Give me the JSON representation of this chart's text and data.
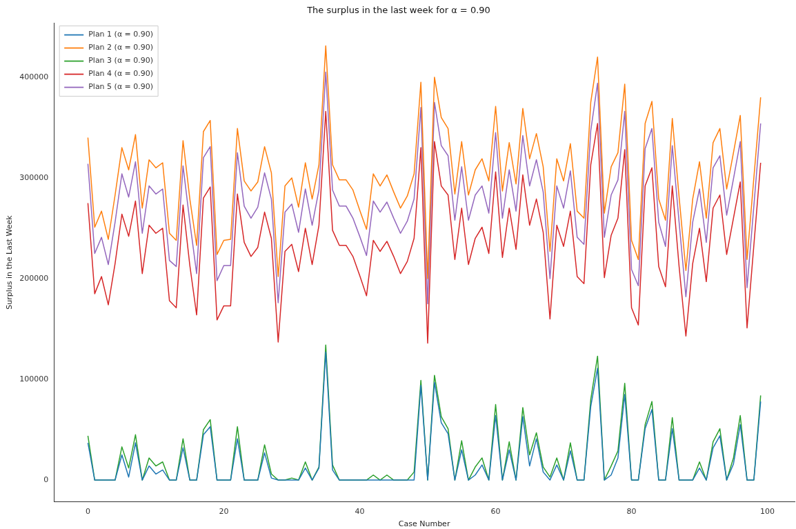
{
  "chart_data": {
    "type": "line",
    "title": "The surplus in the last week for α = 0.90",
    "xlabel": "Case Number",
    "ylabel": "Surplus in the Last Week",
    "x": [
      0,
      1,
      2,
      3,
      4,
      5,
      6,
      7,
      8,
      9,
      10,
      11,
      12,
      13,
      14,
      15,
      16,
      17,
      18,
      19,
      20,
      21,
      22,
      23,
      24,
      25,
      26,
      27,
      28,
      29,
      30,
      31,
      32,
      33,
      34,
      35,
      36,
      37,
      38,
      39,
      40,
      41,
      42,
      43,
      44,
      45,
      46,
      47,
      48,
      49,
      50,
      51,
      52,
      53,
      54,
      55,
      56,
      57,
      58,
      59,
      60,
      61,
      62,
      63,
      64,
      65,
      66,
      67,
      68,
      69,
      70,
      71,
      72,
      73,
      74,
      75,
      76,
      77,
      78,
      79,
      80,
      81,
      82,
      83,
      84,
      85,
      86,
      87,
      88,
      89,
      90,
      91,
      92,
      93,
      94,
      95,
      96,
      97,
      98,
      99
    ],
    "xlim": [
      -5,
      104
    ],
    "xticks": [
      0,
      20,
      40,
      60,
      80,
      100
    ],
    "ylim": [
      -21600,
      453600
    ],
    "yticks": [
      0,
      100000,
      200000,
      300000,
      400000
    ],
    "legend": "top left",
    "series": [
      {
        "name": "Plan 1 (α = 0.90)",
        "color": "#1f77b4",
        "values": [
          37000,
          0,
          0,
          0,
          0,
          25000,
          3000,
          37000,
          0,
          14000,
          6000,
          10000,
          0,
          0,
          32000,
          0,
          0,
          45000,
          53000,
          0,
          0,
          0,
          41000,
          0,
          0,
          0,
          27000,
          2000,
          0,
          0,
          0,
          0,
          12000,
          0,
          12000,
          127000,
          10000,
          0,
          0,
          0,
          0,
          0,
          0,
          0,
          0,
          0,
          0,
          0,
          0,
          94000,
          0,
          97000,
          57000,
          46000,
          0,
          30000,
          0,
          5000,
          15000,
          0,
          64000,
          0,
          30000,
          0,
          63000,
          14000,
          41000,
          8000,
          0,
          15000,
          0,
          29000,
          0,
          0,
          73000,
          111000,
          0,
          5000,
          22000,
          85000,
          0,
          0,
          51000,
          70000,
          0,
          0,
          51000,
          0,
          0,
          0,
          12000,
          0,
          32000,
          44000,
          0,
          16000,
          55000,
          0,
          0,
          78000
        ]
      },
      {
        "name": "Plan 2 (α = 0.90)",
        "color": "#ff7f0e",
        "values": [
          340000,
          251000,
          267000,
          239000,
          283000,
          330000,
          308000,
          343000,
          270000,
          318000,
          310000,
          315000,
          245000,
          238000,
          337000,
          279000,
          233000,
          346000,
          357000,
          224000,
          238000,
          239000,
          349000,
          297000,
          287000,
          296000,
          331000,
          305000,
          202000,
          292000,
          300000,
          271000,
          315000,
          279000,
          313000,
          431000,
          313000,
          298000,
          298000,
          288000,
          268000,
          249000,
          304000,
          292000,
          303000,
          286000,
          270000,
          282000,
          304000,
          395000,
          200000,
          400000,
          360000,
          349000,
          284000,
          336000,
          283000,
          308000,
          319000,
          297000,
          371000,
          287000,
          335000,
          294000,
          369000,
          319000,
          344000,
          311000,
          227000,
          319000,
          297000,
          334000,
          267000,
          260000,
          375000,
          420000,
          265000,
          311000,
          325000,
          393000,
          238000,
          219000,
          354000,
          376000,
          279000,
          258000,
          359000,
          281000,
          208000,
          279000,
          316000,
          260000,
          335000,
          349000,
          289000,
          325000,
          362000,
          219000,
          300000,
          380000
        ]
      },
      {
        "name": "Plan 3 (α = 0.90)",
        "color": "#2ca02c",
        "values": [
          44000,
          0,
          0,
          0,
          0,
          33000,
          12000,
          45000,
          0,
          22000,
          14000,
          18000,
          0,
          0,
          41000,
          0,
          0,
          50000,
          60000,
          0,
          0,
          0,
          53000,
          0,
          0,
          0,
          35000,
          6000,
          0,
          0,
          2000,
          0,
          18000,
          0,
          13000,
          134000,
          15000,
          0,
          0,
          0,
          0,
          0,
          5000,
          0,
          5000,
          0,
          0,
          0,
          8000,
          99000,
          0,
          104000,
          63000,
          51000,
          0,
          39000,
          0,
          13000,
          22000,
          0,
          75000,
          0,
          38000,
          0,
          72000,
          25000,
          47000,
          13000,
          3000,
          22000,
          0,
          37000,
          0,
          0,
          80000,
          123000,
          0,
          14000,
          29000,
          96000,
          0,
          0,
          55000,
          78000,
          0,
          0,
          62000,
          0,
          0,
          0,
          18000,
          0,
          38000,
          51000,
          0,
          22000,
          64000,
          0,
          0,
          84000
        ]
      },
      {
        "name": "Plan 4 (α = 0.90)",
        "color": "#d62728",
        "values": [
          275000,
          185000,
          202000,
          174000,
          215000,
          264000,
          242000,
          277000,
          205000,
          253000,
          245000,
          250000,
          178000,
          171000,
          273000,
          213000,
          164000,
          280000,
          291000,
          159000,
          173000,
          173000,
          284000,
          236000,
          222000,
          231000,
          266000,
          240000,
          137000,
          227000,
          234000,
          207000,
          250000,
          214000,
          253000,
          366000,
          248000,
          233000,
          233000,
          222000,
          203000,
          183000,
          238000,
          227000,
          237000,
          222000,
          205000,
          217000,
          240000,
          330000,
          136000,
          336000,
          292000,
          283000,
          219000,
          270000,
          214000,
          240000,
          251000,
          225000,
          306000,
          221000,
          270000,
          229000,
          303000,
          253000,
          279000,
          246000,
          160000,
          253000,
          232000,
          267000,
          202000,
          195000,
          313000,
          354000,
          201000,
          243000,
          260000,
          328000,
          171000,
          154000,
          292000,
          310000,
          212000,
          192000,
          292000,
          212000,
          143000,
          215000,
          250000,
          197000,
          270000,
          283000,
          224000,
          260000,
          296000,
          151000,
          233000,
          315000
        ]
      },
      {
        "name": "Plan 5 (α = 0.90)",
        "color": "#9467bd",
        "values": [
          314000,
          225000,
          241000,
          214000,
          256000,
          304000,
          281000,
          316000,
          245000,
          292000,
          284000,
          289000,
          218000,
          212000,
          312000,
          256000,
          205000,
          320000,
          331000,
          198000,
          213000,
          213000,
          325000,
          272000,
          260000,
          271000,
          305000,
          279000,
          176000,
          266000,
          274000,
          246000,
          289000,
          253000,
          288000,
          405000,
          288000,
          272000,
          272000,
          260000,
          242000,
          223000,
          277000,
          266000,
          276000,
          260000,
          245000,
          257000,
          279000,
          370000,
          175000,
          375000,
          332000,
          322000,
          258000,
          311000,
          258000,
          283000,
          292000,
          265000,
          345000,
          260000,
          308000,
          267000,
          342000,
          292000,
          318000,
          286000,
          200000,
          292000,
          270000,
          307000,
          241000,
          234000,
          347000,
          394000,
          241000,
          283000,
          298000,
          366000,
          209000,
          193000,
          329000,
          349000,
          256000,
          232000,
          332000,
          256000,
          182000,
          256000,
          289000,
          236000,
          310000,
          322000,
          263000,
          299000,
          336000,
          191000,
          272000,
          354000
        ]
      }
    ]
  }
}
